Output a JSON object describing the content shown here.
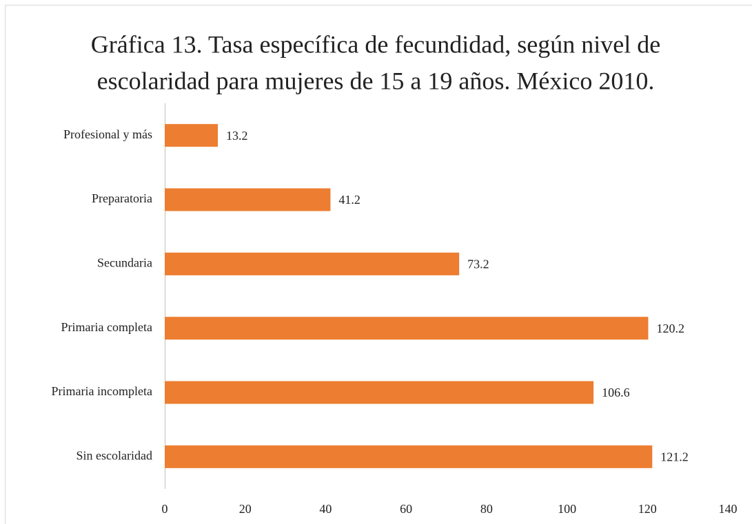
{
  "chart_data": {
    "type": "bar",
    "orientation": "horizontal",
    "title": [
      "Gráfica 13. Tasa específica de fecundidad, según nivel de",
      "escolaridad para mujeres de 15 a 19 años. México 2010."
    ],
    "categories": [
      "Sin escolaridad",
      "Primaria incompleta",
      "Primaria completa",
      "Secundaria",
      "Preparatoria",
      "Profesional y más"
    ],
    "values": [
      121.2,
      106.6,
      120.2,
      73.2,
      41.2,
      13.2
    ],
    "color": "#ed7d31",
    "xlim": [
      0,
      140
    ],
    "xticks": [
      0,
      20,
      40,
      60,
      80,
      100,
      120,
      140
    ],
    "grid": false
  }
}
